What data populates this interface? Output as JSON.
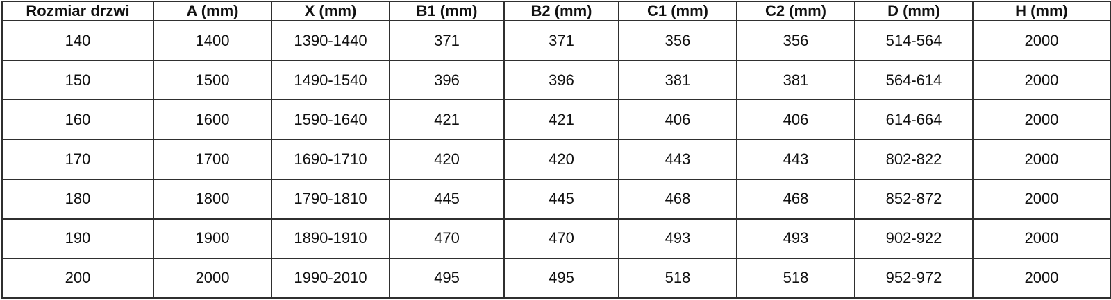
{
  "table": {
    "columns": [
      "Rozmiar drzwi",
      "A (mm)",
      "X (mm)",
      "B1 (mm)",
      "B2 (mm)",
      "C1 (mm)",
      "C2 (mm)",
      "D (mm)",
      "H (mm)"
    ],
    "rows": [
      [
        "140",
        "1400",
        "1390-1440",
        "371",
        "371",
        "356",
        "356",
        "514-564",
        "2000"
      ],
      [
        "150",
        "1500",
        "1490-1540",
        "396",
        "396",
        "381",
        "381",
        "564-614",
        "2000"
      ],
      [
        "160",
        "1600",
        "1590-1640",
        "421",
        "421",
        "406",
        "406",
        "614-664",
        "2000"
      ],
      [
        "170",
        "1700",
        "1690-1710",
        "420",
        "420",
        "443",
        "443",
        "802-822",
        "2000"
      ],
      [
        "180",
        "1800",
        "1790-1810",
        "445",
        "445",
        "468",
        "468",
        "852-872",
        "2000"
      ],
      [
        "190",
        "1900",
        "1890-1910",
        "470",
        "470",
        "493",
        "493",
        "902-922",
        "2000"
      ],
      [
        "200",
        "2000",
        "1990-2010",
        "495",
        "495",
        "518",
        "518",
        "952-972",
        "2000"
      ]
    ]
  },
  "colors": {
    "border": "#2f2f2f",
    "text": "#111111",
    "background": "#ffffff"
  }
}
